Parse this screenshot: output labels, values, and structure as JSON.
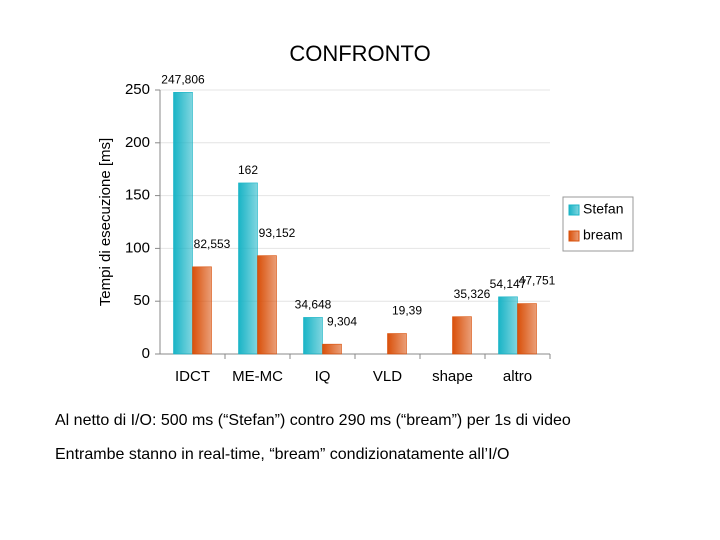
{
  "slide": {
    "notes": [
      "Al netto di I/O: 500 ms (“Stefan”) contro 290 ms (“bream”) per 1s di video",
      "Entrambe stanno in real-time, “bream” condizionatamente all’I/O"
    ]
  },
  "chart_data": {
    "type": "bar",
    "title": "CONFRONTO",
    "y_label": "Tempi di esecuzione [ms]",
    "categories": [
      "IDCT",
      "ME-MC",
      "IQ",
      "VLD",
      "shape",
      "altro"
    ],
    "series": [
      {
        "name": "Stefan",
        "color": "#19b4c6",
        "values": [
          247.806,
          162,
          34.648,
          null,
          null,
          54.147
        ],
        "value_labels": [
          "247,806",
          "162",
          "34,648",
          null,
          null,
          "54,147"
        ]
      },
      {
        "name": "bream",
        "color": "#d9500a",
        "values": [
          82.553,
          93.152,
          9.304,
          19.39,
          35.326,
          47.751
        ],
        "value_labels": [
          "82,553",
          "93,152",
          "9,304",
          "19,39",
          "35,326",
          "47,751"
        ]
      }
    ],
    "ylim": [
      0,
      250
    ],
    "yticks": [
      0,
      50,
      100,
      150,
      200,
      250
    ],
    "grid": true,
    "legend": "right"
  }
}
